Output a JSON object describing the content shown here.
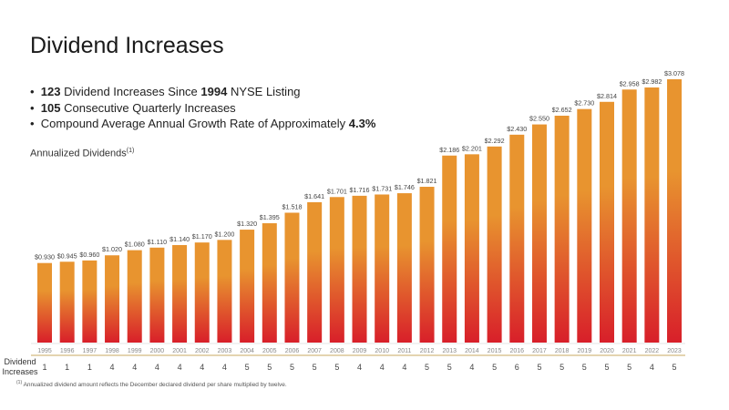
{
  "slide": {
    "title": "Dividend Increases",
    "bullets": [
      [
        {
          "text": "123",
          "bold": true
        },
        {
          "text": " Dividend Increases Since ",
          "bold": false
        },
        {
          "text": "1994",
          "bold": true
        },
        {
          "text": " NYSE Listing",
          "bold": false
        }
      ],
      [
        {
          "text": "105",
          "bold": true
        },
        {
          "text": " Consecutive Quarterly Increases",
          "bold": false
        }
      ],
      [
        {
          "text": "Compound Average Annual Growth Rate of Approximately ",
          "bold": false
        },
        {
          "text": "4.3%",
          "bold": true
        }
      ]
    ],
    "chart_subtitle": "Annualized Dividends",
    "chart_subtitle_note": "(1)",
    "row_label": "Dividend Increases",
    "footnote_mark": "(1)",
    "footnote": "Annualized dividend amount reflects the December declared dividend per share multiplied by twelve."
  },
  "chart_data": {
    "type": "bar",
    "title": "Annualized Dividends",
    "categories": [
      "1995",
      "1996",
      "1997",
      "1998",
      "1999",
      "2000",
      "2001",
      "2002",
      "2003",
      "2004",
      "2005",
      "2006",
      "2007",
      "2008",
      "2009",
      "2010",
      "2011",
      "2012",
      "2013",
      "2014",
      "2015",
      "2016",
      "2017",
      "2018",
      "2019",
      "2020",
      "2021",
      "2022",
      "2023"
    ],
    "values": [
      0.93,
      0.945,
      0.96,
      1.02,
      1.08,
      1.11,
      1.14,
      1.17,
      1.2,
      1.32,
      1.395,
      1.518,
      1.641,
      1.701,
      1.716,
      1.731,
      1.746,
      1.821,
      2.186,
      2.201,
      2.292,
      2.43,
      2.55,
      2.652,
      2.73,
      2.814,
      2.958,
      2.982,
      3.078
    ],
    "value_labels": [
      "$0.930",
      "$0.945",
      "$0.960",
      "$1.020",
      "$1.080",
      "$1.110",
      "$1.140",
      "$1.170",
      "$1.200",
      "$1.320",
      "$1.395",
      "$1.518",
      "$1.641",
      "$1.701",
      "$1.716",
      "$1.731",
      "$1.746",
      "$1.821",
      "$2.186",
      "$2.201",
      "$2.292",
      "$2.430",
      "$2.550",
      "$2.652",
      "$2.730",
      "$2.814",
      "$2.958",
      "$2.982",
      "$3.078"
    ],
    "dividend_increases": [
      1,
      1,
      1,
      4,
      4,
      4,
      4,
      4,
      4,
      5,
      5,
      5,
      5,
      5,
      4,
      4,
      4,
      5,
      5,
      4,
      5,
      6,
      5,
      5,
      5,
      5,
      5,
      4,
      5
    ],
    "ylim": [
      0,
      3.078
    ],
    "grid": false,
    "colors": {
      "bar_top": "#e8942f",
      "bar_bottom": "#d81f2a",
      "separator": "#c9a862"
    }
  }
}
